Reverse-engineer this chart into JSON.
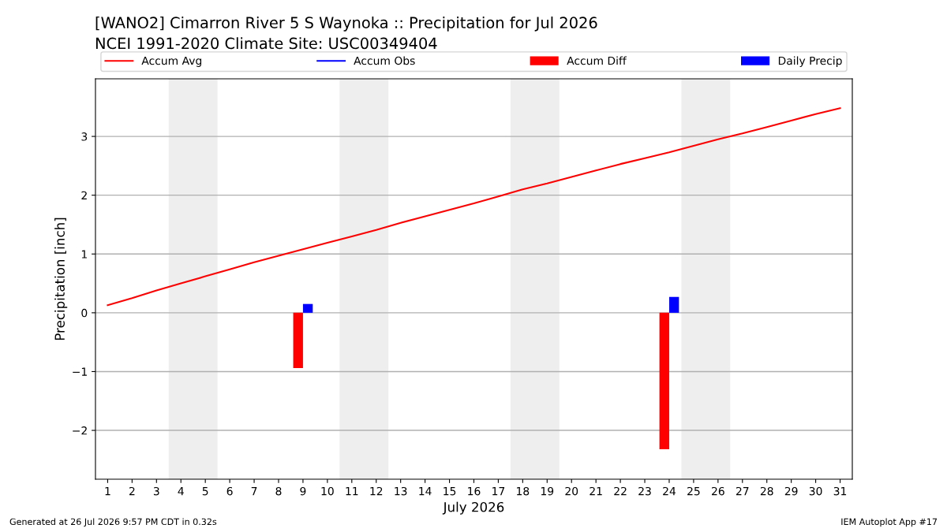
{
  "chart_data": {
    "type": "line",
    "title": "[WANO2] Cimarron River 5 S Waynoka :: Precipitation for Jul 2026",
    "subtitle": "NCEI 1991-2020 Climate Site: USC00349404",
    "xlabel": "July 2026",
    "ylabel": "Precipitation [inch]",
    "x": [
      1,
      2,
      3,
      4,
      5,
      6,
      7,
      8,
      9,
      10,
      11,
      12,
      13,
      14,
      15,
      16,
      17,
      18,
      19,
      20,
      21,
      22,
      23,
      24,
      25,
      26,
      27,
      28,
      29,
      30,
      31
    ],
    "series": [
      {
        "name": "Accum Avg",
        "color": "#ff0000",
        "values": [
          0.13,
          0.25,
          0.38,
          0.5,
          0.62,
          0.74,
          0.86,
          0.97,
          1.08,
          1.19,
          1.3,
          1.41,
          1.53,
          1.64,
          1.75,
          1.86,
          1.98,
          2.1,
          2.2,
          2.31,
          2.42,
          2.53,
          2.63,
          2.73,
          2.84,
          2.95,
          3.05,
          3.16,
          3.27,
          3.38,
          3.48
        ]
      },
      {
        "name": "Accum Obs",
        "color": "#0000ff",
        "values": [
          null,
          null,
          null,
          null,
          null,
          null,
          null,
          null,
          null,
          null,
          null,
          null,
          null,
          null,
          null,
          null,
          null,
          null,
          null,
          null,
          null,
          null,
          null,
          null,
          null,
          null,
          null,
          null,
          null,
          null,
          null
        ]
      },
      {
        "name": "Accum Diff",
        "type": "bar",
        "color": "#ff0000",
        "values": [
          null,
          null,
          null,
          null,
          null,
          null,
          null,
          null,
          -0.94,
          null,
          null,
          null,
          null,
          null,
          null,
          null,
          null,
          null,
          null,
          null,
          null,
          null,
          null,
          -2.32,
          null,
          null,
          null,
          null,
          null,
          null,
          null
        ]
      },
      {
        "name": "Daily Precip",
        "type": "bar",
        "color": "#0000ff",
        "values": [
          null,
          null,
          null,
          null,
          null,
          null,
          null,
          null,
          0.15,
          null,
          null,
          null,
          null,
          null,
          null,
          null,
          null,
          null,
          null,
          null,
          null,
          null,
          null,
          0.27,
          null,
          null,
          null,
          null,
          null,
          null,
          null
        ]
      }
    ],
    "bands": [
      {
        "axis": "x",
        "from": 3.5,
        "to": 5.5,
        "color": "#eeeeee"
      },
      {
        "axis": "x",
        "from": 10.5,
        "to": 12.5,
        "color": "#eeeeee"
      },
      {
        "axis": "x",
        "from": 17.5,
        "to": 19.5,
        "color": "#eeeeee"
      },
      {
        "axis": "x",
        "from": 24.5,
        "to": 26.5,
        "color": "#eeeeee"
      }
    ],
    "xlim": [
      0.5,
      31.5
    ],
    "xticks": [
      1,
      2,
      3,
      4,
      5,
      6,
      7,
      8,
      9,
      10,
      11,
      12,
      13,
      14,
      15,
      16,
      17,
      18,
      19,
      20,
      21,
      22,
      23,
      24,
      25,
      26,
      27,
      28,
      29,
      30,
      31
    ],
    "ylim": [
      -2.83,
      3.98
    ],
    "yticks": [
      {
        "value": -2,
        "label": "−2"
      },
      {
        "value": -1,
        "label": "−1"
      },
      0,
      1,
      2,
      3
    ],
    "grid": "y",
    "legend": "top",
    "annotations": [
      "Generated at 26 Jul 2026 9:57 PM CDT in 0.32s",
      "IEM Autoplot App #17"
    ]
  }
}
